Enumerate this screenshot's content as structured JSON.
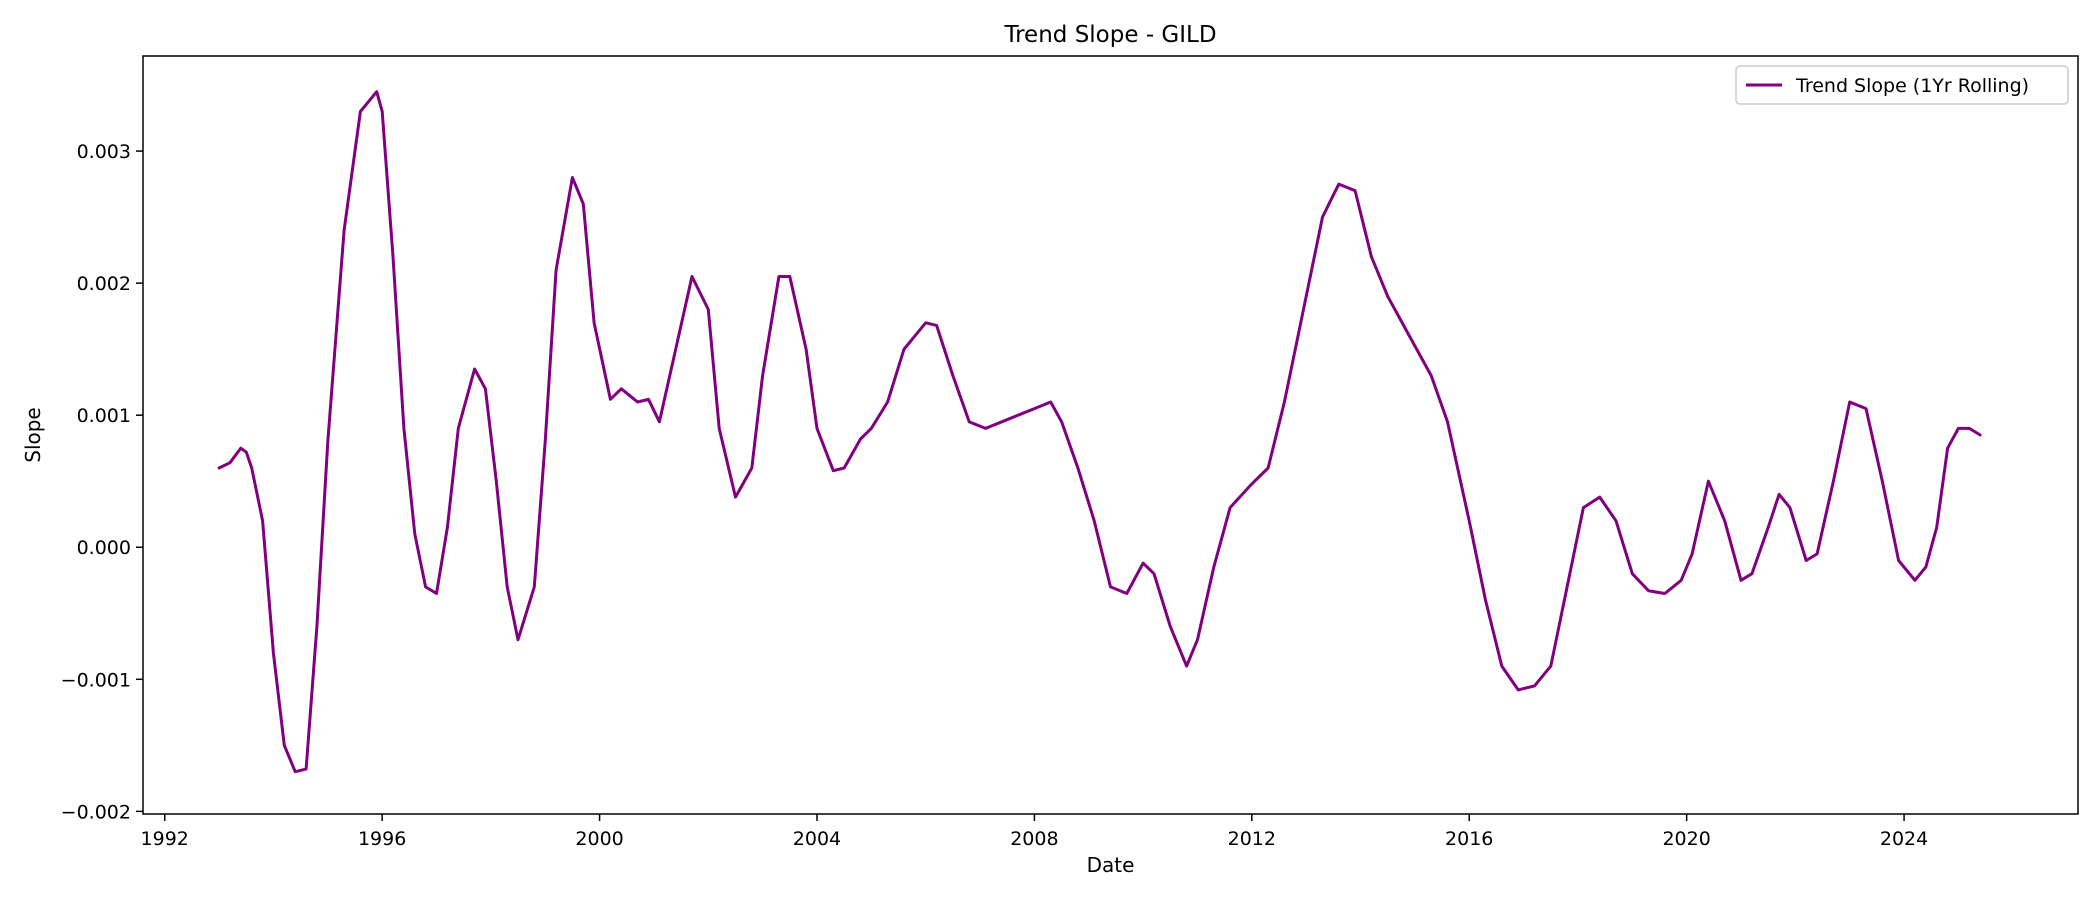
{
  "chart_data": {
    "type": "line",
    "title": "Trend Slope - GILD",
    "xlabel": "Date",
    "ylabel": "Slope",
    "xlim": [
      1991.6,
      2027.2
    ],
    "ylim": [
      -0.00202,
      0.00372
    ],
    "x_ticks": [
      1992,
      1996,
      2000,
      2004,
      2008,
      2012,
      2016,
      2020,
      2024
    ],
    "x_tick_labels": [
      "1992",
      "1996",
      "2000",
      "2004",
      "2008",
      "2012",
      "2016",
      "2020",
      "2024"
    ],
    "y_ticks": [
      -0.002,
      -0.001,
      0.0,
      0.001,
      0.002,
      0.003
    ],
    "y_tick_labels": [
      "−0.002",
      "−0.001",
      "0.000",
      "0.001",
      "0.002",
      "0.003"
    ],
    "grid": false,
    "legend_position": "top-right",
    "series": [
      {
        "name": "Trend Slope (1Yr Rolling)",
        "color": "#800080",
        "x": [
          1993.0,
          1993.2,
          1993.4,
          1993.5,
          1993.6,
          1993.8,
          1994.0,
          1994.2,
          1994.4,
          1994.6,
          1994.8,
          1995.0,
          1995.3,
          1995.6,
          1995.9,
          1996.0,
          1996.2,
          1996.4,
          1996.6,
          1996.8,
          1997.0,
          1997.2,
          1997.4,
          1997.7,
          1997.9,
          1998.1,
          1998.3,
          1998.5,
          1998.8,
          1999.0,
          1999.2,
          1999.5,
          1999.7,
          1999.9,
          2000.2,
          2000.4,
          2000.7,
          2000.9,
          2001.1,
          2001.4,
          2001.7,
          2002.0,
          2002.2,
          2002.5,
          2002.8,
          2003.0,
          2003.3,
          2003.5,
          2003.8,
          2004.0,
          2004.3,
          2004.5,
          2004.8,
          2005.0,
          2005.3,
          2005.6,
          2006.0,
          2006.2,
          2006.5,
          2006.8,
          2007.1,
          2007.4,
          2007.7,
          2008.0,
          2008.3,
          2008.5,
          2008.8,
          2009.1,
          2009.4,
          2009.7,
          2010.0,
          2010.2,
          2010.5,
          2010.8,
          2011.0,
          2011.3,
          2011.6,
          2012.0,
          2012.3,
          2012.6,
          2013.0,
          2013.3,
          2013.6,
          2013.9,
          2014.2,
          2014.5,
          2014.9,
          2015.3,
          2015.6,
          2016.0,
          2016.3,
          2016.6,
          2016.9,
          2017.2,
          2017.5,
          2017.8,
          2018.1,
          2018.4,
          2018.7,
          2019.0,
          2019.3,
          2019.6,
          2019.9,
          2020.1,
          2020.4,
          2020.7,
          2021.0,
          2021.2,
          2021.5,
          2021.7,
          2021.9,
          2022.2,
          2022.4,
          2022.7,
          2023.0,
          2023.3,
          2023.6,
          2023.9,
          2024.2,
          2024.4,
          2024.6,
          2024.8,
          2025.0,
          2025.2,
          2025.4
        ],
        "y": [
          0.0006,
          0.00064,
          0.00075,
          0.00072,
          0.0006,
          0.0002,
          -0.0008,
          -0.0015,
          -0.0017,
          -0.00168,
          -0.0006,
          0.0008,
          0.0024,
          0.0033,
          0.00345,
          0.0033,
          0.0022,
          0.0009,
          0.0001,
          -0.0003,
          -0.00035,
          0.00015,
          0.0009,
          0.00135,
          0.0012,
          0.0005,
          -0.0003,
          -0.0007,
          -0.0003,
          0.0008,
          0.0021,
          0.0028,
          0.0026,
          0.0017,
          0.00112,
          0.0012,
          0.0011,
          0.00112,
          0.00095,
          0.0015,
          0.00205,
          0.0018,
          0.0009,
          0.00038,
          0.0006,
          0.0013,
          0.00205,
          0.00205,
          0.0015,
          0.0009,
          0.00058,
          0.0006,
          0.00082,
          0.0009,
          0.0011,
          0.0015,
          0.0017,
          0.00168,
          0.0013,
          0.00095,
          0.0009,
          0.00095,
          0.001,
          0.00105,
          0.0011,
          0.00095,
          0.0006,
          0.0002,
          -0.0003,
          -0.00035,
          -0.00012,
          -0.0002,
          -0.0006,
          -0.0009,
          -0.0007,
          -0.00015,
          0.0003,
          0.00048,
          0.0006,
          0.0011,
          0.0019,
          0.0025,
          0.00275,
          0.0027,
          0.0022,
          0.0019,
          0.0016,
          0.0013,
          0.00095,
          0.0002,
          -0.0004,
          -0.0009,
          -0.00108,
          -0.00105,
          -0.0009,
          -0.0003,
          0.0003,
          0.00038,
          0.0002,
          -0.0002,
          -0.00033,
          -0.00035,
          -0.00025,
          -5e-05,
          0.0005,
          0.0002,
          -0.00025,
          -0.0002,
          0.00015,
          0.0004,
          0.0003,
          -0.0001,
          -5e-05,
          0.0005,
          0.0011,
          0.00105,
          0.0005,
          -0.0001,
          -0.00025,
          -0.00015,
          0.00015,
          0.00075,
          0.0009,
          0.0009,
          0.00085
        ]
      }
    ]
  }
}
